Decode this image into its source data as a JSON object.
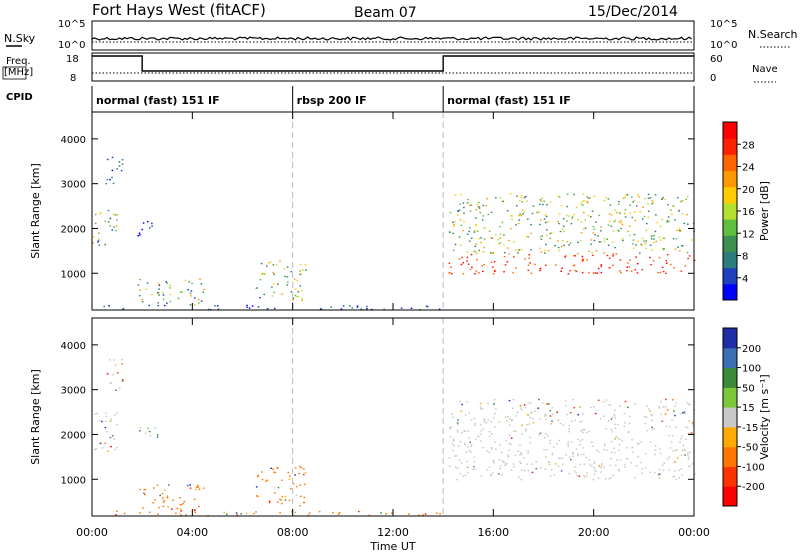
{
  "header": {
    "station": "Fort Hays West (fitACF)",
    "beam": "Beam 07",
    "date": "15/Dec/2014"
  },
  "status_panels": {
    "nsky_label": "N.Sky",
    "nsky_ticks": [
      "10^5",
      "10^0"
    ],
    "nsearch_label": "N.Search",
    "nsearch_ticks": [
      "10^5",
      "10^0"
    ],
    "freq_label_1": "Freq.",
    "freq_label_2": "[MHz]",
    "freq_ticks": [
      "18",
      "8"
    ],
    "nave_label": "Nave",
    "nave_ticks": [
      "60",
      "0"
    ],
    "cpid_label": "CPID"
  },
  "modes": [
    {
      "label": "normal (fast) 151 IF",
      "start_hour": 0,
      "end_hour": 8
    },
    {
      "label": "rbsp 200 IF",
      "start_hour": 8,
      "end_hour": 14
    },
    {
      "label": "normal (fast) 151 IF",
      "start_hour": 14,
      "end_hour": 24
    }
  ],
  "chart_data": [
    {
      "type": "heatmap",
      "title": "",
      "xlabel": "",
      "ylabel": "Slant Range [km]",
      "xlim": [
        0,
        24
      ],
      "ylim": [
        180,
        4600
      ],
      "yticks": [
        "4000",
        "3000",
        "2000",
        "1000"
      ],
      "colorbar": {
        "label": "Power [dB]",
        "ticks": [
          "28",
          "24",
          "20",
          "16",
          "12",
          "8",
          "4"
        ],
        "colors": [
          "#0000ff",
          "#1f3fbf",
          "#2e7d7d",
          "#3c8f4f",
          "#5fbf3f",
          "#b7df2f",
          "#ffcc00",
          "#ff9900",
          "#ff6600",
          "#ff2200",
          "#ff0000"
        ]
      },
      "echo_regions": [
        {
          "t0": 0.0,
          "t1": 1.0,
          "r0": 1600,
          "r1": 2500,
          "level": "mixed"
        },
        {
          "t0": 0.5,
          "t1": 1.2,
          "r0": 3000,
          "r1": 3700,
          "level": "low"
        },
        {
          "t0": 1.8,
          "t1": 2.6,
          "r0": 1800,
          "r1": 2200,
          "level": "low"
        },
        {
          "t0": 1.8,
          "t1": 4.5,
          "r0": 300,
          "r1": 900,
          "level": "mixed"
        },
        {
          "t0": 6.5,
          "t1": 8.5,
          "r0": 400,
          "r1": 1300,
          "level": "mixed"
        },
        {
          "t0": 14.2,
          "t1": 24.0,
          "r0": 1000,
          "r1": 2800,
          "level": "high"
        },
        {
          "t0": 0.0,
          "t1": 14.0,
          "r0": 200,
          "r1": 300,
          "level": "low"
        }
      ]
    },
    {
      "type": "heatmap",
      "title": "",
      "xlabel": "Time UT",
      "ylabel": "Slant Range [km]",
      "xlim": [
        0,
        24
      ],
      "ylim": [
        180,
        4600
      ],
      "xticks": [
        "00:00",
        "04:00",
        "08:00",
        "12:00",
        "16:00",
        "20:00",
        "00:00"
      ],
      "yticks": [
        "4000",
        "3000",
        "2000",
        "1000"
      ],
      "colorbar": {
        "label": "Velocity [m s⁻¹]",
        "ticks": [
          "200",
          "100",
          "50",
          "15",
          "-15",
          "-50",
          "-100",
          "-200"
        ],
        "colors": [
          "#1f2ea6",
          "#3d6fb5",
          "#3a8a3a",
          "#7cc73a",
          "#c8c8c8",
          "#ffaa00",
          "#ff7700",
          "#ff3300",
          "#ff0000"
        ]
      },
      "ground_scatter_color": "#c8c8c0"
    }
  ]
}
